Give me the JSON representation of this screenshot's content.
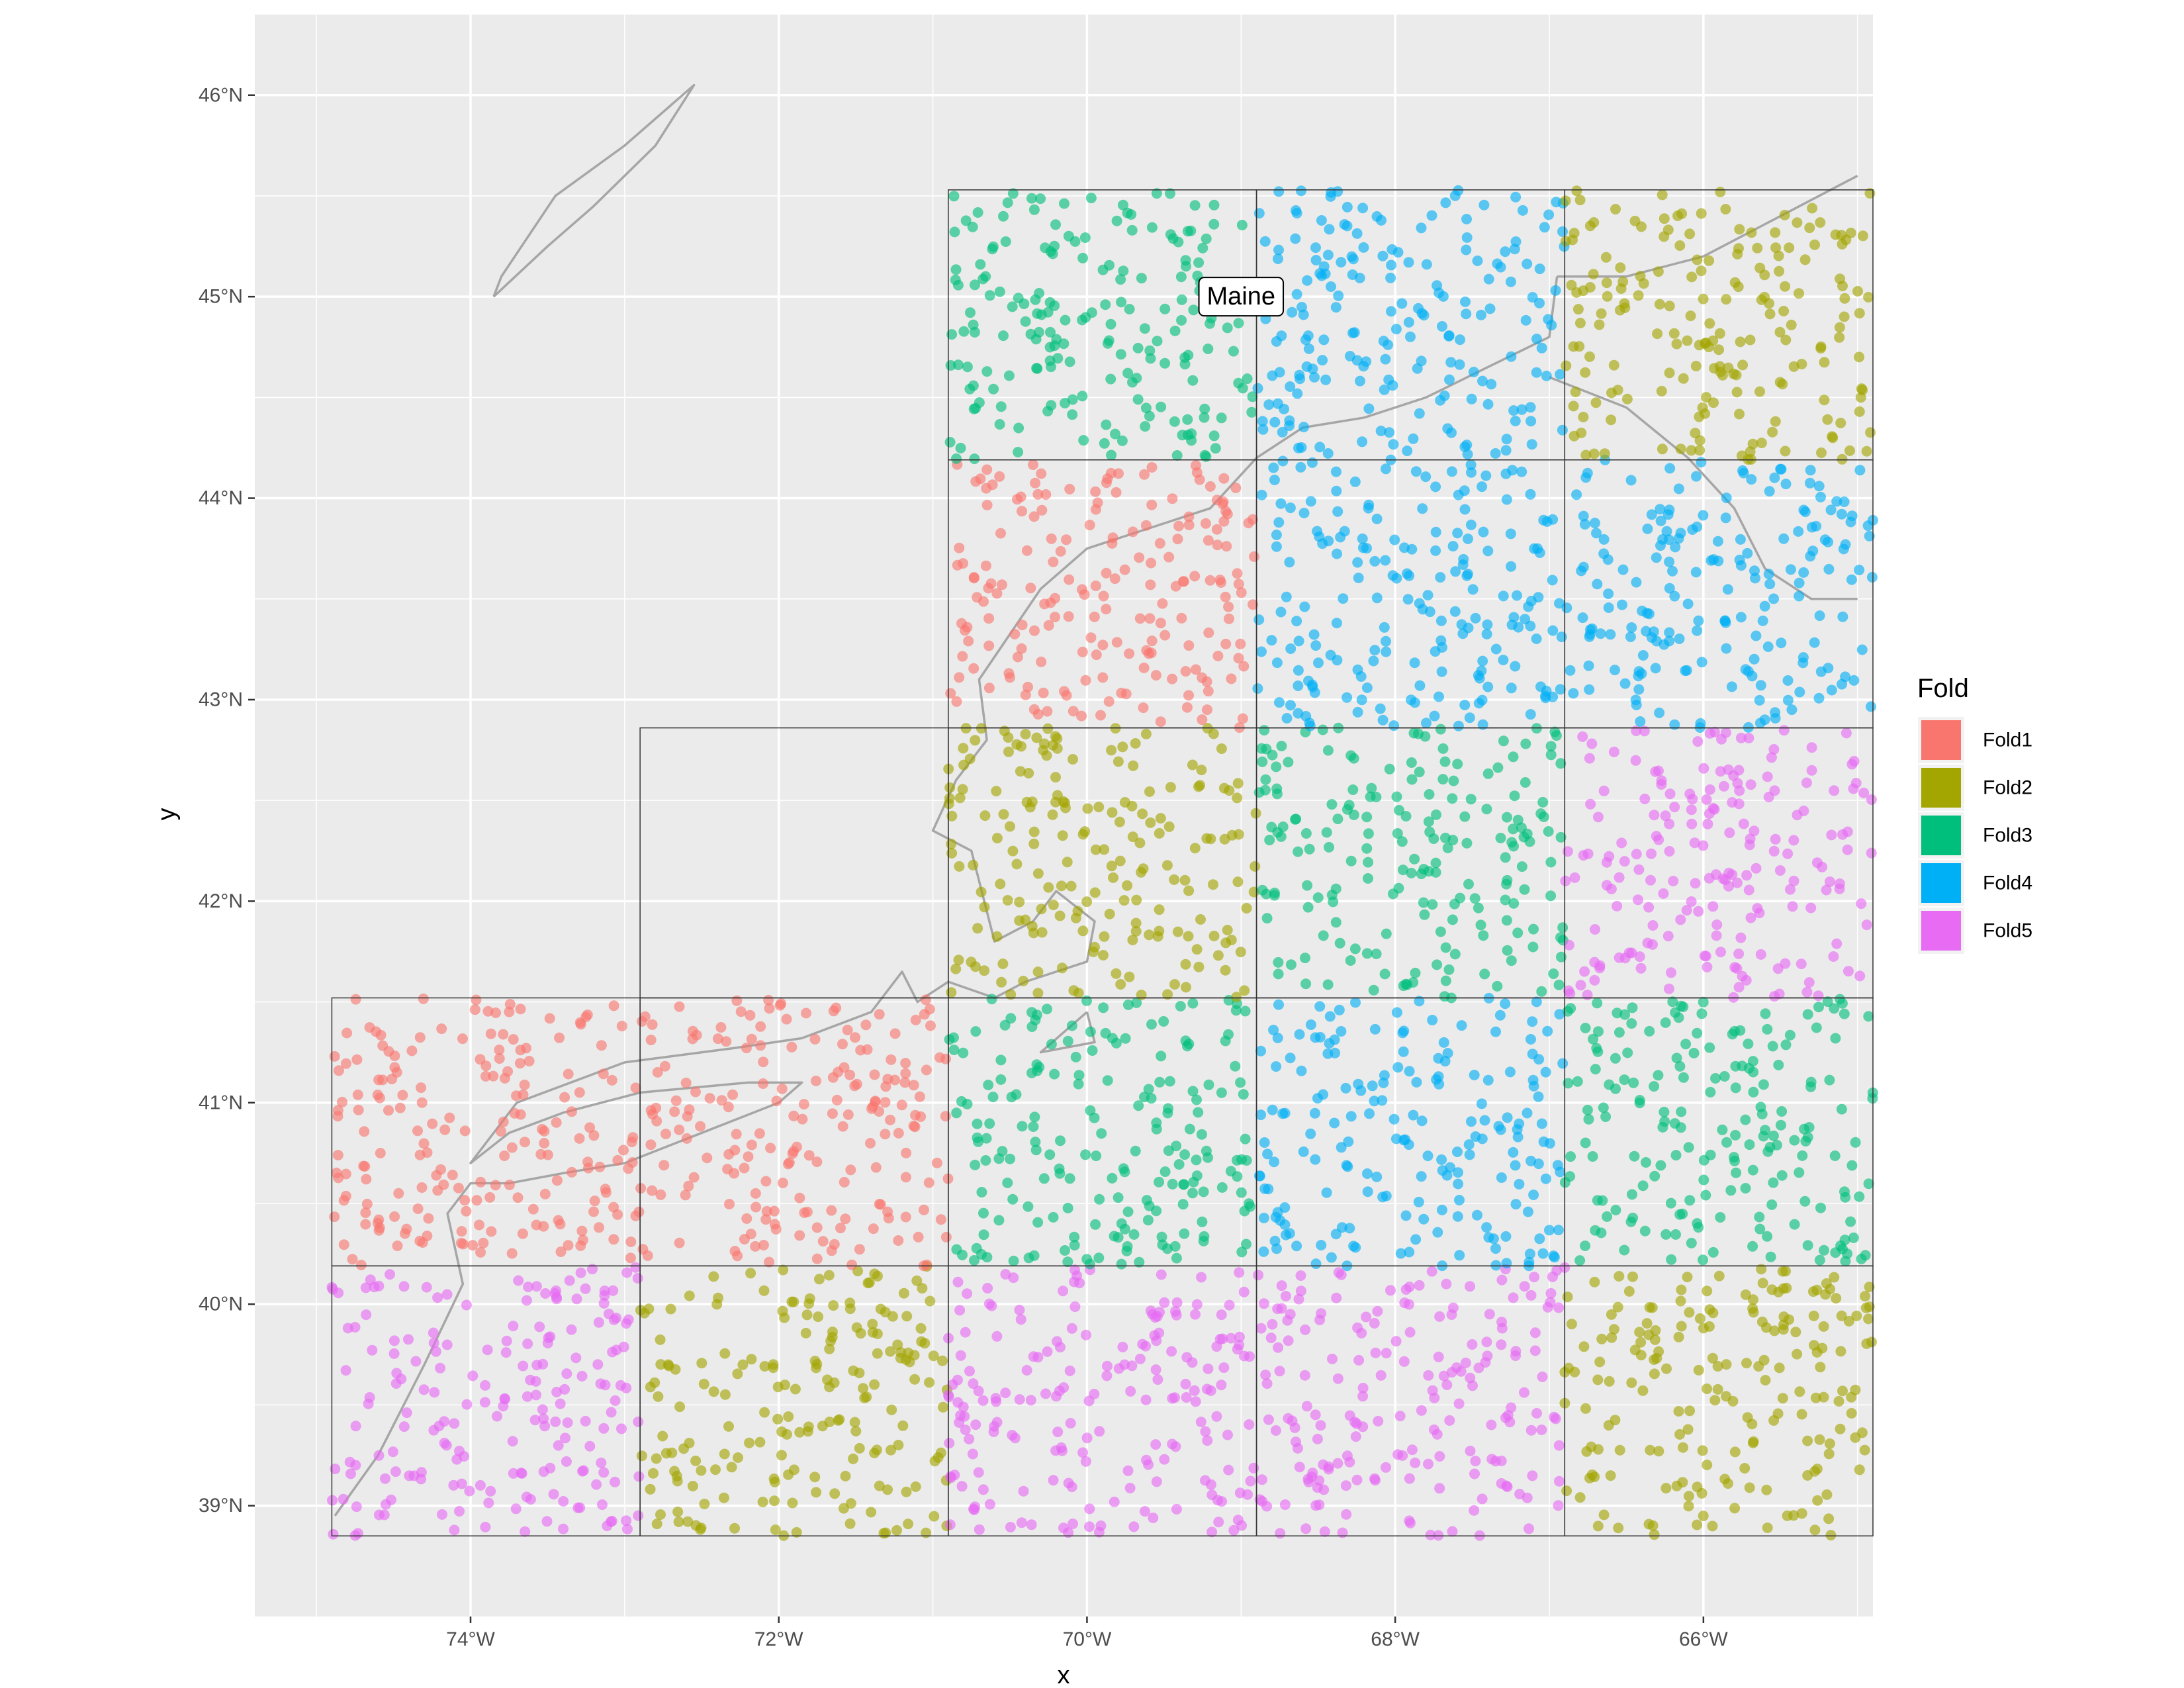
{
  "chart_data": {
    "type": "scatter",
    "title": "",
    "xlabel": "x",
    "ylabel": "y",
    "xlim": [
      -75.4,
      -64.9
    ],
    "ylim": [
      38.45,
      46.4
    ],
    "x_ticks": [
      {
        "value": -74,
        "label": "74°W"
      },
      {
        "value": -72,
        "label": "72°W"
      },
      {
        "value": -70,
        "label": "70°W"
      },
      {
        "value": -68,
        "label": "68°W"
      },
      {
        "value": -66,
        "label": "66°W"
      }
    ],
    "y_ticks": [
      {
        "value": 39,
        "label": "39°N"
      },
      {
        "value": 40,
        "label": "40°N"
      },
      {
        "value": 41,
        "label": "41°N"
      },
      {
        "value": 42,
        "label": "42°N"
      },
      {
        "value": 43,
        "label": "43°N"
      },
      {
        "value": 44,
        "label": "44°N"
      },
      {
        "value": 45,
        "label": "45°N"
      },
      {
        "value": 46,
        "label": "46°N"
      }
    ],
    "grid": true,
    "legend": {
      "title": "Fold",
      "placement": "right",
      "entries": [
        {
          "name": "Fold1",
          "color": "#F8766D"
        },
        {
          "name": "Fold2",
          "color": "#A3A500"
        },
        {
          "name": "Fold3",
          "color": "#00BF7D"
        },
        {
          "name": "Fold4",
          "color": "#00B0F6"
        },
        {
          "name": "Fold5",
          "color": "#E76BF3"
        }
      ]
    },
    "annotation": {
      "text": "Maine",
      "lon": -69.0,
      "lat": 45.0
    },
    "block_grid": {
      "lon_edges": [
        -74.9,
        -72.9,
        -70.9,
        -68.9,
        -66.9,
        -64.9
      ],
      "lat_edges": [
        38.85,
        40.19,
        41.52,
        42.86,
        44.19,
        45.53
      ],
      "cells": [
        {
          "lon": [
            -74.9,
            -72.9
          ],
          "lat": [
            38.85,
            40.19
          ],
          "fold": "Fold5"
        },
        {
          "lon": [
            -72.9,
            -70.9
          ],
          "lat": [
            38.85,
            40.19
          ],
          "fold": "Fold2"
        },
        {
          "lon": [
            -70.9,
            -68.9
          ],
          "lat": [
            38.85,
            40.19
          ],
          "fold": "Fold5"
        },
        {
          "lon": [
            -68.9,
            -66.9
          ],
          "lat": [
            38.85,
            40.19
          ],
          "fold": "Fold5"
        },
        {
          "lon": [
            -66.9,
            -64.9
          ],
          "lat": [
            38.85,
            40.19
          ],
          "fold": "Fold2"
        },
        {
          "lon": [
            -74.9,
            -72.9
          ],
          "lat": [
            40.19,
            41.52
          ],
          "fold": "Fold1"
        },
        {
          "lon": [
            -72.9,
            -70.9
          ],
          "lat": [
            40.19,
            41.52
          ],
          "fold": "Fold1"
        },
        {
          "lon": [
            -70.9,
            -68.9
          ],
          "lat": [
            40.19,
            41.52
          ],
          "fold": "Fold3"
        },
        {
          "lon": [
            -68.9,
            -66.9
          ],
          "lat": [
            40.19,
            41.52
          ],
          "fold": "Fold4"
        },
        {
          "lon": [
            -66.9,
            -64.9
          ],
          "lat": [
            40.19,
            41.52
          ],
          "fold": "Fold3"
        },
        {
          "lon": [
            -72.9,
            -70.9
          ],
          "lat": [
            41.52,
            42.86
          ],
          "fold": "none"
        },
        {
          "lon": [
            -70.9,
            -68.9
          ],
          "lat": [
            41.52,
            42.86
          ],
          "fold": "Fold2"
        },
        {
          "lon": [
            -68.9,
            -66.9
          ],
          "lat": [
            41.52,
            42.86
          ],
          "fold": "Fold3"
        },
        {
          "lon": [
            -66.9,
            -64.9
          ],
          "lat": [
            41.52,
            42.86
          ],
          "fold": "Fold5"
        },
        {
          "lon": [
            -70.9,
            -68.9
          ],
          "lat": [
            42.86,
            44.19
          ],
          "fold": "Fold1"
        },
        {
          "lon": [
            -68.9,
            -66.9
          ],
          "lat": [
            42.86,
            44.19
          ],
          "fold": "Fold4"
        },
        {
          "lon": [
            -66.9,
            -64.9
          ],
          "lat": [
            42.86,
            44.19
          ],
          "fold": "Fold4"
        },
        {
          "lon": [
            -70.9,
            -68.9
          ],
          "lat": [
            44.19,
            45.53
          ],
          "fold": "Fold3"
        },
        {
          "lon": [
            -68.9,
            -66.9
          ],
          "lat": [
            44.19,
            45.53
          ],
          "fold": "Fold4"
        },
        {
          "lon": [
            -66.9,
            -64.9
          ],
          "lat": [
            44.19,
            45.53
          ],
          "fold": "Fold2"
        }
      ]
    },
    "coastline": [
      [
        [
          -74.88,
          38.95
        ],
        [
          -74.6,
          39.25
        ],
        [
          -74.3,
          39.7
        ],
        [
          -74.05,
          40.1
        ],
        [
          -74.15,
          40.45
        ],
        [
          -74.0,
          40.6
        ],
        [
          -73.75,
          40.6
        ],
        [
          -73.4,
          40.65
        ],
        [
          -73.0,
          40.7
        ],
        [
          -72.5,
          40.85
        ],
        [
          -72.0,
          41.0
        ],
        [
          -71.85,
          41.1
        ],
        [
          -72.2,
          41.1
        ],
        [
          -72.9,
          41.05
        ],
        [
          -73.4,
          40.95
        ],
        [
          -73.75,
          40.85
        ],
        [
          -74.0,
          40.7
        ],
        [
          -73.7,
          41.0
        ],
        [
          -73.0,
          41.2
        ],
        [
          -72.3,
          41.27
        ],
        [
          -71.85,
          41.32
        ],
        [
          -71.4,
          41.45
        ],
        [
          -71.2,
          41.65
        ],
        [
          -71.1,
          41.5
        ],
        [
          -70.9,
          41.6
        ],
        [
          -70.6,
          41.52
        ],
        [
          -70.4,
          41.6
        ],
        [
          -70.0,
          41.7
        ],
        [
          -69.95,
          41.9
        ],
        [
          -70.2,
          42.05
        ],
        [
          -70.35,
          41.9
        ],
        [
          -70.6,
          41.8
        ],
        [
          -70.75,
          42.25
        ],
        [
          -71.0,
          42.35
        ],
        [
          -70.85,
          42.6
        ],
        [
          -70.65,
          42.8
        ],
        [
          -70.7,
          43.1
        ],
        [
          -70.3,
          43.55
        ],
        [
          -70.0,
          43.75
        ],
        [
          -69.6,
          43.85
        ],
        [
          -69.2,
          43.95
        ],
        [
          -68.9,
          44.2
        ],
        [
          -68.6,
          44.35
        ],
        [
          -68.2,
          44.4
        ],
        [
          -67.8,
          44.5
        ],
        [
          -67.4,
          44.65
        ],
        [
          -67.0,
          44.8
        ],
        [
          -66.95,
          45.1
        ]
      ],
      [
        [
          -66.95,
          45.1
        ],
        [
          -66.5,
          45.1
        ],
        [
          -66.0,
          45.2
        ],
        [
          -65.5,
          45.4
        ],
        [
          -65.0,
          45.6
        ]
      ],
      [
        [
          -67.0,
          44.6
        ],
        [
          -66.5,
          44.45
        ],
        [
          -66.1,
          44.2
        ],
        [
          -65.8,
          43.95
        ],
        [
          -65.6,
          43.65
        ],
        [
          -65.3,
          43.5
        ],
        [
          -65.0,
          43.5
        ]
      ],
      [
        [
          -70.0,
          41.45
        ],
        [
          -69.95,
          41.3
        ],
        [
          -70.3,
          41.25
        ],
        [
          -70.0,
          41.45
        ]
      ],
      [
        [
          -73.85,
          45.0
        ],
        [
          -73.5,
          45.25
        ],
        [
          -73.2,
          45.45
        ],
        [
          -72.8,
          45.75
        ],
        [
          -72.55,
          46.05
        ],
        [
          -73.0,
          45.75
        ],
        [
          -73.45,
          45.5
        ],
        [
          -73.8,
          45.1
        ],
        [
          -73.85,
          45.0
        ]
      ]
    ]
  }
}
